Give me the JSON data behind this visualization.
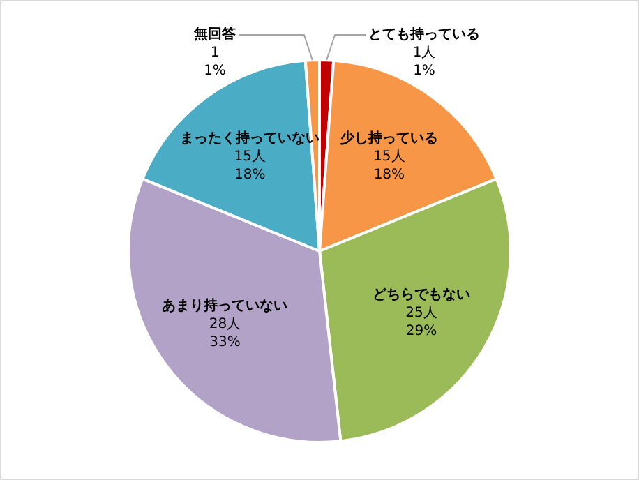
{
  "chart_data": {
    "type": "pie",
    "categories": [
      "とても持っている",
      "少し持っている",
      "どちらでもない",
      "あまり持っていない",
      "まったく持っていない",
      "無回答"
    ],
    "values": [
      1,
      15,
      25,
      28,
      15,
      1
    ],
    "colors": [
      "#c00000",
      "#f79646",
      "#9bbb59",
      "#b2a2c7",
      "#4bacc6",
      "#f79646"
    ],
    "value_labels": [
      "1人\n1%",
      "15人\n18%",
      "25人\n29%",
      "28人\n33%",
      "15人\n18%",
      "1\n1%"
    ],
    "legend": false
  }
}
